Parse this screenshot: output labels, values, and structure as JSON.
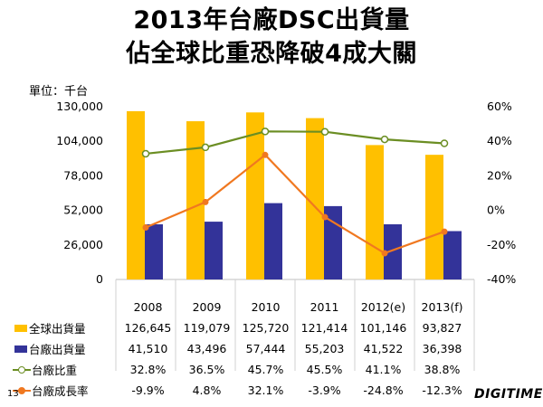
{
  "title": {
    "line1": "2013年台廠DSC出貨量",
    "line2": "佔全球比重恐降破4成大關"
  },
  "unit_label": "單位：千台",
  "page_number": "13",
  "brand": "DIGITIMES",
  "colors": {
    "global_bar": "#FFC000",
    "taiwan_bar": "#333399",
    "share_line": "#6B8E23",
    "growth_line": "#F07820"
  },
  "chart_data": {
    "type": "bar",
    "categories": [
      "2008",
      "2009",
      "2010",
      "2011",
      "2012(e)",
      "2013(f)"
    ],
    "left_axis": {
      "min": 0,
      "max": 130000,
      "ticks": [
        "0",
        "26,000",
        "52,000",
        "78,000",
        "104,000",
        "130,000"
      ],
      "tick_values": [
        0,
        26000,
        52000,
        78000,
        104000,
        130000
      ]
    },
    "right_axis": {
      "min": -40,
      "max": 60,
      "ticks": [
        "-40%",
        "-20%",
        "0%",
        "20%",
        "40%",
        "60%"
      ],
      "tick_values": [
        -40,
        -20,
        0,
        20,
        40,
        60
      ]
    },
    "series": [
      {
        "name": "全球出貨量",
        "kind": "bar",
        "axis": "left",
        "values": [
          126645,
          119079,
          125720,
          121414,
          101146,
          93827
        ],
        "labels": [
          "126,645",
          "119,079",
          "125,720",
          "121,414",
          "101,146",
          "93,827"
        ]
      },
      {
        "name": "台廠出貨量",
        "kind": "bar",
        "axis": "left",
        "values": [
          41510,
          43496,
          57444,
          55203,
          41522,
          36398
        ],
        "labels": [
          "41,510",
          "43,496",
          "57,444",
          "55,203",
          "41,522",
          "36,398"
        ]
      },
      {
        "name": "台廠比重",
        "kind": "line",
        "axis": "right",
        "values": [
          32.8,
          36.5,
          45.7,
          45.5,
          41.1,
          38.8
        ],
        "labels": [
          "32.8%",
          "36.5%",
          "45.7%",
          "45.5%",
          "41.1%",
          "38.8%"
        ]
      },
      {
        "name": "台廠成長率",
        "kind": "line",
        "axis": "right",
        "values": [
          -9.9,
          4.8,
          32.1,
          -3.9,
          -24.8,
          -12.3
        ],
        "labels": [
          "-9.9%",
          "4.8%",
          "32.1%",
          "-3.9%",
          "-24.8%",
          "-12.3%"
        ]
      }
    ]
  }
}
